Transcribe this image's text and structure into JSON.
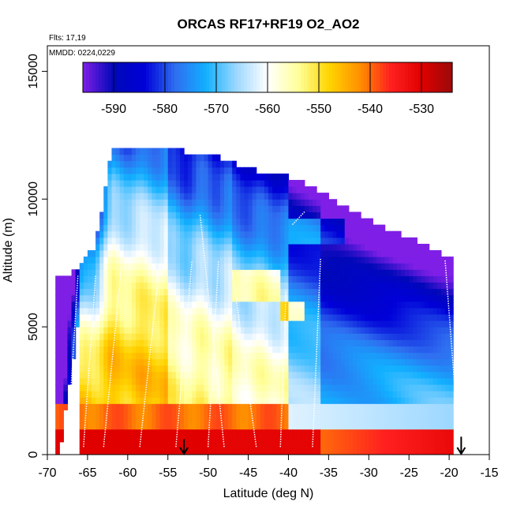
{
  "chart_data": {
    "type": "heatmap",
    "title": "ORCAS RF17+RF19 O2_AO2",
    "notes": [
      "Flts: 17,19",
      "MMDD: 0224,0229"
    ],
    "xlabel": "Latitude (deg N)",
    "ylabel": "Altitude (m)",
    "xlim": [
      -70,
      -15
    ],
    "ylim": [
      0,
      16000
    ],
    "x_ticks": [
      -70,
      -65,
      -60,
      -55,
      -50,
      -45,
      -40,
      -35,
      -30,
      -25,
      -20,
      -15
    ],
    "y_ticks": [
      0,
      5000,
      10000,
      15000
    ],
    "x_tick_labels": [
      "-70",
      "-65",
      "-60",
      "-55",
      "-50",
      "-45",
      "-40",
      "-35",
      "-30",
      "-25",
      "-20",
      "-15"
    ],
    "y_tick_labels": [
      "0",
      "5000",
      "10000",
      "15000"
    ],
    "colorbar": {
      "range": [
        -596,
        -524
      ],
      "ticks": [
        -590,
        -580,
        -570,
        -560,
        -550,
        -540,
        -530
      ],
      "tick_labels": [
        "-590",
        "-580",
        "-570",
        "-560",
        "-550",
        "-540",
        "-530"
      ],
      "colors": [
        "#7f1fe6",
        "#0008b8",
        "#0000d8",
        "#2f6ef0",
        "#12b0ff",
        "#9ed8ff",
        "#ffffff",
        "#ffff9a",
        "#ffd400",
        "#ff9000",
        "#ff2020",
        "#e00000",
        "#9a0a0a"
      ]
    },
    "coverage_top_altitude": [
      [
        -68.5,
        6900
      ],
      [
        -66.5,
        7200
      ],
      [
        -64,
        8200
      ],
      [
        -62,
        11900
      ],
      [
        -58,
        11900
      ],
      [
        -54,
        11900
      ],
      [
        -50,
        11800
      ],
      [
        -47,
        11400
      ],
      [
        -44,
        11100
      ],
      [
        -40,
        10900
      ],
      [
        -36,
        10300
      ],
      [
        -33,
        9700
      ],
      [
        -29,
        9000
      ],
      [
        -25,
        8500
      ],
      [
        -20,
        7700
      ]
    ],
    "markers": [
      {
        "type": "arrow-down",
        "lat": -53,
        "alt": 600
      },
      {
        "type": "arrow-down",
        "lat": -18.5,
        "alt": 700
      }
    ],
    "grid": false,
    "legend_position": "top"
  }
}
